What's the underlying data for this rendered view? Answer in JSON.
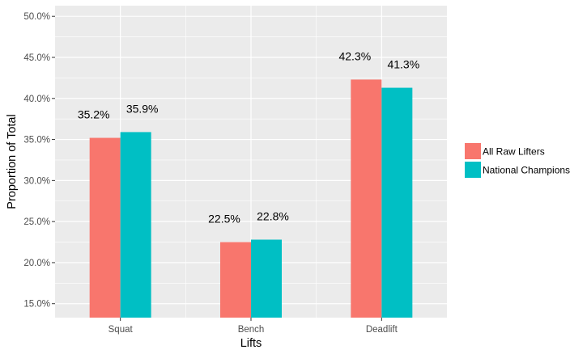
{
  "chart_data": {
    "type": "bar",
    "categories": [
      "Squat",
      "Bench",
      "Deadlift"
    ],
    "series": [
      {
        "name": "All Raw Lifters",
        "values": [
          35.2,
          22.5,
          42.3
        ],
        "labels": [
          "35.2%",
          "22.5%",
          "42.3%"
        ],
        "color": "#F8766D"
      },
      {
        "name": "National Champions",
        "values": [
          35.9,
          22.8,
          41.3
        ],
        "labels": [
          "35.9%",
          "22.8%",
          "41.3%"
        ],
        "color": "#00BFC4"
      }
    ],
    "xlabel": "Lifts",
    "ylabel": "Proportion of Total",
    "ylim": [
      13.3,
      51.3
    ],
    "yticks": [
      15,
      20,
      25,
      30,
      35,
      40,
      45,
      50
    ],
    "ytick_labels": [
      "15.0%",
      "20.0%",
      "25.0%",
      "30.0%",
      "35.0%",
      "40.0%",
      "45.0%",
      "50.0%"
    ],
    "grid": true,
    "legend": "right",
    "panel_color": "#EBEBEB",
    "grid_color": "#FFFFFF"
  }
}
